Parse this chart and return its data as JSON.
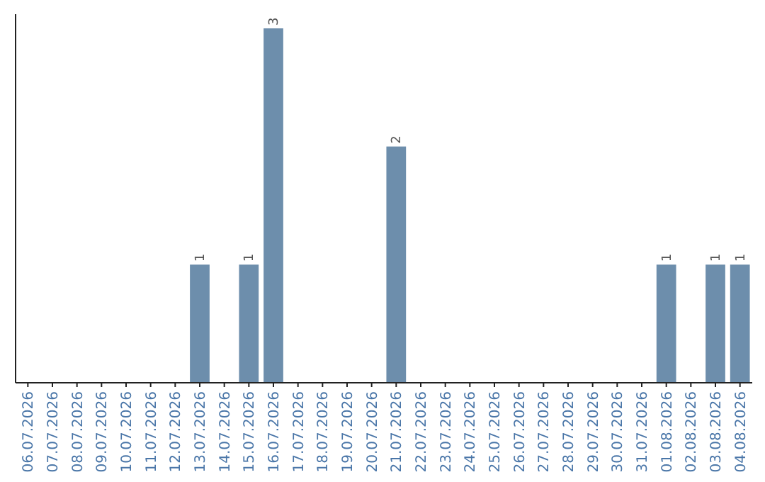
{
  "chart_data": {
    "type": "bar",
    "categories": [
      "06.07.2026",
      "07.07.2026",
      "08.07.2026",
      "09.07.2026",
      "10.07.2026",
      "11.07.2026",
      "12.07.2026",
      "13.07.2026",
      "14.07.2026",
      "15.07.2026",
      "16.07.2026",
      "17.07.2026",
      "18.07.2026",
      "19.07.2026",
      "20.07.2026",
      "21.07.2026",
      "22.07.2026",
      "23.07.2026",
      "24.07.2026",
      "25.07.2026",
      "26.07.2026",
      "27.07.2026",
      "28.07.2026",
      "29.07.2026",
      "30.07.2026",
      "31.07.2026",
      "01.08.2026",
      "02.08.2026",
      "03.08.2026",
      "04.08.2026"
    ],
    "values": [
      0,
      0,
      0,
      0,
      0,
      0,
      0,
      1,
      0,
      1,
      3,
      0,
      0,
      0,
      0,
      2,
      0,
      0,
      0,
      0,
      0,
      0,
      0,
      0,
      0,
      0,
      1,
      0,
      1,
      1
    ],
    "color": "#6d8eac",
    "value_labels": [
      null,
      null,
      null,
      null,
      null,
      null,
      null,
      "1",
      null,
      "1",
      "3",
      null,
      null,
      null,
      null,
      "2",
      null,
      null,
      null,
      null,
      null,
      null,
      null,
      null,
      null,
      null,
      "1",
      null,
      "1",
      "1"
    ]
  }
}
